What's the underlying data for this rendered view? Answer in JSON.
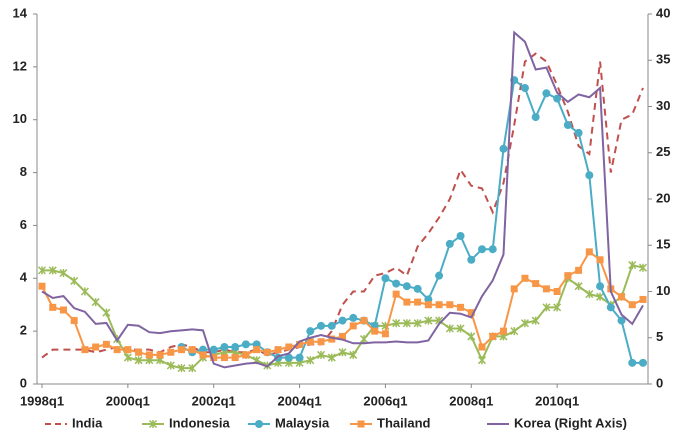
{
  "chart_data": {
    "type": "line",
    "categories": [
      "1998q1",
      null,
      null,
      null,
      null,
      null,
      null,
      null,
      "2000q1",
      null,
      null,
      null,
      null,
      null,
      null,
      null,
      "2002q1",
      null,
      null,
      null,
      null,
      null,
      null,
      null,
      "2004q1",
      null,
      null,
      null,
      null,
      null,
      null,
      null,
      "2006q1",
      null,
      null,
      null,
      null,
      null,
      null,
      null,
      "2008q1",
      null,
      null,
      null,
      null,
      null,
      null,
      null,
      "2010q1",
      null,
      null,
      null,
      null,
      null,
      null,
      null,
      null
    ],
    "ylim": [
      0,
      14
    ],
    "yticks": [
      0,
      2,
      4,
      6,
      8,
      10,
      12,
      14
    ],
    "y2lim": [
      0,
      40
    ],
    "y2ticks": [
      0,
      5,
      10,
      15,
      20,
      25,
      30,
      35,
      40
    ],
    "series": [
      {
        "name": "India",
        "color": "#c0504d",
        "dash": true,
        "marker": "none",
        "values": [
          1.0,
          1.3,
          1.3,
          1.3,
          1.3,
          1.2,
          1.3,
          1.4,
          1.3,
          1.3,
          1.3,
          1.2,
          1.4,
          1.5,
          1.4,
          1.2,
          1.2,
          1.3,
          1.2,
          1.2,
          1.3,
          1.1,
          1.2,
          1.3,
          1.4,
          1.5,
          1.5,
          2.0,
          3.0,
          3.5,
          3.5,
          4.1,
          4.2,
          4.4,
          4.1,
          5.2,
          5.7,
          6.3,
          7.0,
          8.1,
          7.5,
          7.4,
          6.5,
          7.6,
          9.8,
          12.2,
          12.5,
          12.2,
          11.3,
          10.3,
          9.0,
          8.7,
          12.2,
          8.0,
          10.0,
          10.2,
          11.2
        ]
      },
      {
        "name": "Indonesia",
        "color": "#9bbb59",
        "dash": false,
        "marker": "star",
        "values": [
          4.3,
          4.3,
          4.2,
          3.9,
          3.5,
          3.1,
          2.7,
          1.7,
          1.0,
          0.9,
          0.9,
          0.9,
          0.7,
          0.6,
          0.6,
          1.0,
          1.1,
          1.2,
          1.2,
          1.1,
          0.9,
          0.7,
          0.8,
          0.8,
          0.8,
          0.9,
          1.1,
          1.0,
          1.2,
          1.1,
          1.7,
          2.2,
          2.2,
          2.3,
          2.3,
          2.3,
          2.4,
          2.4,
          2.1,
          2.1,
          1.8,
          0.9,
          1.8,
          1.8,
          2.0,
          2.3,
          2.4,
          2.9,
          2.9,
          4.0,
          3.7,
          3.4,
          3.3,
          3.0,
          3.3,
          4.5,
          4.4
        ]
      },
      {
        "name": "Malaysia",
        "color": "#4bacc6",
        "dash": false,
        "marker": "circle",
        "values": [
          null,
          null,
          null,
          null,
          null,
          null,
          null,
          null,
          null,
          null,
          null,
          null,
          null,
          1.4,
          1.2,
          1.3,
          1.3,
          1.4,
          1.4,
          1.5,
          1.5,
          1.2,
          1.0,
          1.0,
          1.0,
          2.0,
          2.2,
          2.2,
          2.4,
          2.5,
          2.4,
          2.2,
          4.0,
          3.8,
          3.7,
          3.6,
          3.2,
          4.1,
          5.3,
          5.6,
          4.7,
          5.1,
          5.1,
          8.9,
          11.5,
          11.2,
          10.1,
          11.0,
          10.8,
          9.8,
          9.5,
          7.9,
          3.7,
          2.9,
          2.4,
          0.8,
          0.8
        ]
      },
      {
        "name": "Thailand",
        "color": "#f79646",
        "dash": false,
        "marker": "square",
        "values": [
          3.7,
          2.9,
          2.8,
          2.4,
          1.3,
          1.4,
          1.5,
          1.3,
          1.3,
          1.2,
          1.1,
          1.1,
          1.2,
          1.3,
          1.3,
          1.1,
          1.0,
          1.0,
          1.0,
          1.1,
          1.3,
          1.2,
          1.3,
          1.4,
          1.5,
          1.6,
          1.6,
          1.7,
          1.8,
          2.2,
          2.4,
          2.0,
          1.9,
          3.4,
          3.1,
          3.1,
          3.0,
          3.0,
          3.0,
          2.9,
          2.7,
          1.4,
          1.8,
          2.0,
          3.6,
          4.0,
          3.8,
          3.6,
          3.5,
          4.1,
          4.3,
          5.0,
          4.7,
          3.6,
          3.3,
          3.0,
          3.2
        ]
      },
      {
        "name": "Korea (Right Axis)",
        "color": "#8064a2",
        "dash": false,
        "marker": "none",
        "axis": "y2",
        "values": [
          10.0,
          9.3,
          9.5,
          8.2,
          7.8,
          6.5,
          6.6,
          4.7,
          6.4,
          6.3,
          5.6,
          5.5,
          5.7,
          5.8,
          5.9,
          5.8,
          2.2,
          1.8,
          2.0,
          2.2,
          2.3,
          1.9,
          3.0,
          3.3,
          4.6,
          5.0,
          5.3,
          5.0,
          4.8,
          4.4,
          4.4,
          4.5,
          4.5,
          4.6,
          4.5,
          4.5,
          4.7,
          6.5,
          7.7,
          7.6,
          7.2,
          9.5,
          11.2,
          14.0,
          38.0,
          37.0,
          34.0,
          34.2,
          31.5,
          30.5,
          31.3,
          31.0,
          32.0,
          10.0,
          7.5,
          6.5,
          8.5
        ]
      }
    ]
  }
}
